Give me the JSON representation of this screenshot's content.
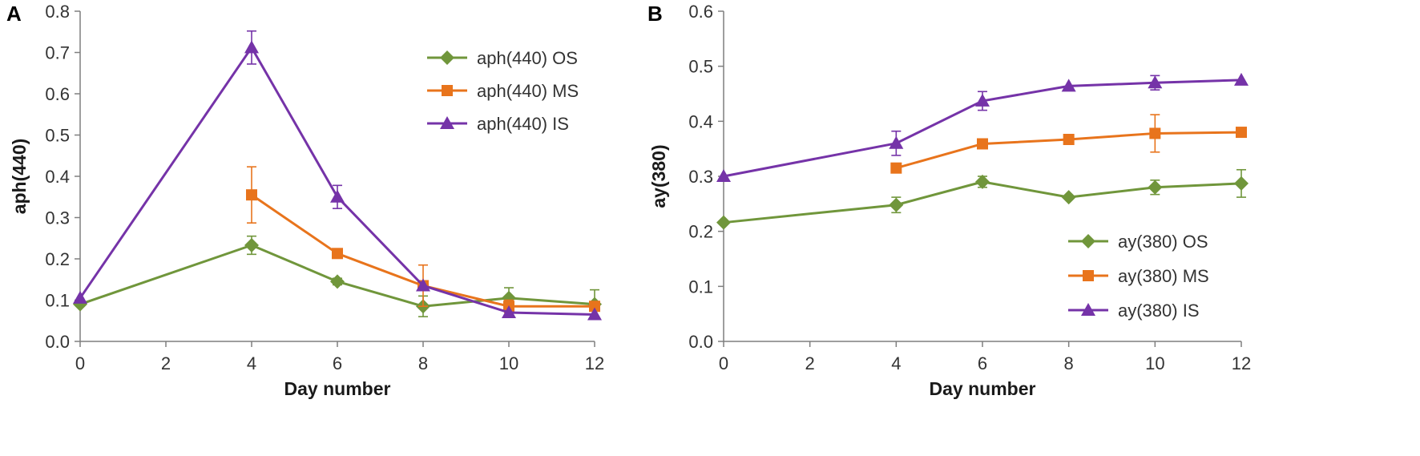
{
  "colors": {
    "OS": "#70963b",
    "MS": "#e8741c",
    "IS": "#7533a8",
    "axis": "#7f7f7f"
  },
  "chart_data": [
    {
      "type": "line",
      "panel": "A",
      "xlabel": "Day number",
      "ylabel": "aph(440)",
      "xlim": [
        0,
        12
      ],
      "ylim": [
        0,
        0.8
      ],
      "xticks": [
        "0",
        "2",
        "4",
        "6",
        "8",
        "10",
        "12"
      ],
      "yticks": [
        "0.0",
        "0.1",
        "0.2",
        "0.3",
        "0.4",
        "0.5",
        "0.6",
        "0.7",
        "0.8"
      ],
      "grid": false,
      "legend_position": "top-right",
      "series": [
        {
          "name": "aph(440) OS",
          "key": "OS",
          "marker": "diamond",
          "x": [
            0,
            4,
            6,
            8,
            10,
            12
          ],
          "y": [
            0.09,
            0.233,
            0.145,
            0.085,
            0.105,
            0.09
          ],
          "err": [
            0,
            0.022,
            0.008,
            0.025,
            0.025,
            0.035
          ]
        },
        {
          "name": "aph(440) MS",
          "key": "MS",
          "marker": "square",
          "x": [
            4,
            6,
            8,
            10,
            12
          ],
          "y": [
            0.355,
            0.213,
            0.135,
            0.085,
            0.085
          ],
          "err": [
            0.068,
            0,
            0.05,
            0.015,
            0
          ]
        },
        {
          "name": "aph(440) IS",
          "key": "IS",
          "marker": "triangle",
          "x": [
            0,
            4,
            6,
            8,
            10,
            12
          ],
          "y": [
            0.105,
            0.712,
            0.35,
            0.135,
            0.07,
            0.065
          ],
          "err": [
            0,
            0.04,
            0.028,
            0,
            0,
            0
          ]
        }
      ]
    },
    {
      "type": "line",
      "panel": "B",
      "xlabel": "Day number",
      "ylabel": "ay(380)",
      "xlim": [
        0,
        12
      ],
      "ylim": [
        0,
        0.6
      ],
      "xticks": [
        "0",
        "2",
        "4",
        "6",
        "8",
        "10",
        "12"
      ],
      "yticks": [
        "0.0",
        "0.1",
        "0.2",
        "0.3",
        "0.4",
        "0.5",
        "0.6"
      ],
      "grid": false,
      "legend_position": "bottom-right",
      "series": [
        {
          "name": "ay(380) OS",
          "key": "OS",
          "marker": "diamond",
          "x": [
            0,
            4,
            6,
            8,
            10,
            12
          ],
          "y": [
            0.216,
            0.248,
            0.29,
            0.262,
            0.28,
            0.287
          ],
          "err": [
            0,
            0.014,
            0.01,
            0,
            0.013,
            0.025
          ]
        },
        {
          "name": "ay(380) MS",
          "key": "MS",
          "marker": "square",
          "x": [
            4,
            6,
            8,
            10,
            12
          ],
          "y": [
            0.315,
            0.359,
            0.367,
            0.378,
            0.38
          ],
          "err": [
            0,
            0,
            0,
            0.034,
            0
          ]
        },
        {
          "name": "ay(380) IS",
          "key": "IS",
          "marker": "triangle",
          "x": [
            0,
            4,
            6,
            8,
            10,
            12
          ],
          "y": [
            0.3,
            0.36,
            0.437,
            0.464,
            0.47,
            0.475
          ],
          "err": [
            0,
            0.022,
            0.017,
            0,
            0.013,
            0
          ]
        }
      ]
    }
  ]
}
